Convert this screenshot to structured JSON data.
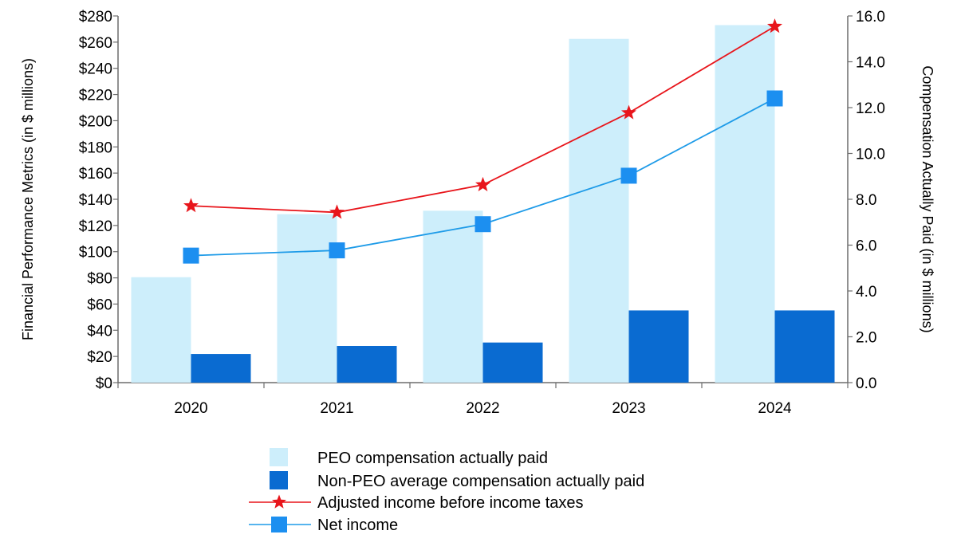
{
  "chart_data": {
    "type": "bar",
    "title": "",
    "categories": [
      "2020",
      "2021",
      "2022",
      "2023",
      "2024"
    ],
    "y_left": {
      "label": "Financial Performance Metrics (in $ millions)",
      "range": [
        0,
        280
      ],
      "ticks": [
        "$0",
        "$20",
        "$40",
        "$60",
        "$80",
        "$100",
        "$120",
        "$140",
        "$160",
        "$180",
        "$200",
        "$220",
        "$240",
        "$260",
        "$280"
      ]
    },
    "y_right": {
      "label": "Compensation Actually Paid (in $ millions)",
      "range": [
        0,
        16
      ],
      "ticks": [
        "0.0",
        "2.0",
        "4.0",
        "6.0",
        "8.0",
        "10.0",
        "12.0",
        "14.0",
        "16.0"
      ]
    },
    "grid": false,
    "legend_position": "bottom",
    "series": [
      {
        "name": "PEO compensation actually paid",
        "kind": "bar",
        "axis": "right",
        "color": "#cdeefb",
        "values": [
          4.6,
          7.35,
          7.5,
          15.0,
          15.6
        ]
      },
      {
        "name": "Non-PEO average compensation actually paid",
        "kind": "bar",
        "axis": "right",
        "color": "#0a6bd1",
        "values": [
          1.25,
          1.6,
          1.75,
          3.15,
          3.15
        ]
      },
      {
        "name": "Adjusted income before income taxes",
        "kind": "line",
        "marker": "star",
        "axis": "left",
        "color": "#e8151b",
        "values": [
          135,
          130,
          151,
          206,
          272
        ]
      },
      {
        "name": "Net income",
        "kind": "line",
        "marker": "square",
        "axis": "left",
        "color": "#1e9be8",
        "marker_color": "#1c8ff0",
        "values": [
          97,
          101,
          121,
          158,
          217
        ]
      }
    ]
  }
}
